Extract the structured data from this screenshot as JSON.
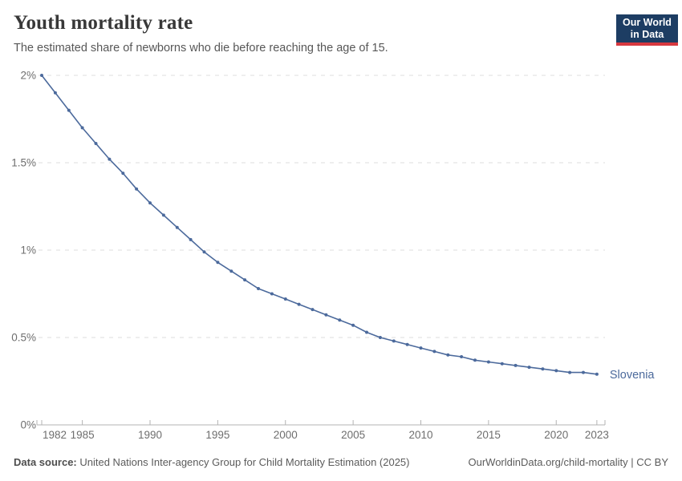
{
  "header": {
    "title": "Youth mortality rate",
    "subtitle": "The estimated share of newborns who die before reaching the age of 15.",
    "logo": {
      "line1": "Our World",
      "line2": "in Data",
      "bg_color": "#1d3d63",
      "stripe_color": "#d7383f"
    }
  },
  "chart_data": {
    "type": "line",
    "title": "Youth mortality rate",
    "subtitle": "The estimated share of newborns who die before reaching the age of 15.",
    "xlabel": "",
    "ylabel": "",
    "xlim": [
      1982,
      2023
    ],
    "ylim": [
      0,
      2
    ],
    "grid": "horizontal-dashed",
    "legend_position": "end-of-line-label",
    "x_ticks": [
      1982,
      1985,
      1990,
      1995,
      2000,
      2005,
      2010,
      2015,
      2020,
      2023
    ],
    "y_ticks": [
      {
        "value": 0,
        "label": "0%"
      },
      {
        "value": 0.5,
        "label": "0.5%"
      },
      {
        "value": 1,
        "label": "1%"
      },
      {
        "value": 1.5,
        "label": "1.5%"
      },
      {
        "value": 2,
        "label": "2%"
      }
    ],
    "x": [
      1982,
      1983,
      1984,
      1985,
      1986,
      1987,
      1988,
      1989,
      1990,
      1991,
      1992,
      1993,
      1994,
      1995,
      1996,
      1997,
      1998,
      1999,
      2000,
      2001,
      2002,
      2003,
      2004,
      2005,
      2006,
      2007,
      2008,
      2009,
      2010,
      2011,
      2012,
      2013,
      2014,
      2015,
      2016,
      2017,
      2018,
      2019,
      2020,
      2021,
      2022,
      2023
    ],
    "series": [
      {
        "name": "Slovenia",
        "color": "#4c6a9c",
        "values": [
          2.0,
          1.9,
          1.8,
          1.7,
          1.61,
          1.52,
          1.44,
          1.35,
          1.27,
          1.2,
          1.13,
          1.06,
          0.99,
          0.93,
          0.88,
          0.83,
          0.78,
          0.75,
          0.72,
          0.69,
          0.66,
          0.63,
          0.6,
          0.57,
          0.53,
          0.5,
          0.48,
          0.46,
          0.44,
          0.42,
          0.4,
          0.39,
          0.37,
          0.36,
          0.35,
          0.34,
          0.33,
          0.32,
          0.31,
          0.3,
          0.3,
          0.29
        ]
      }
    ],
    "colors": {
      "gridline": "#dcdcdc",
      "axis": "#b3b3b3",
      "tick_label": "#6e6e6e"
    }
  },
  "footer": {
    "source_label": "Data source:",
    "source_text": " United Nations Inter-agency Group for Child Mortality Estimation (2025)",
    "link_text": "OurWorldinData.org/child-mortality | CC BY"
  }
}
